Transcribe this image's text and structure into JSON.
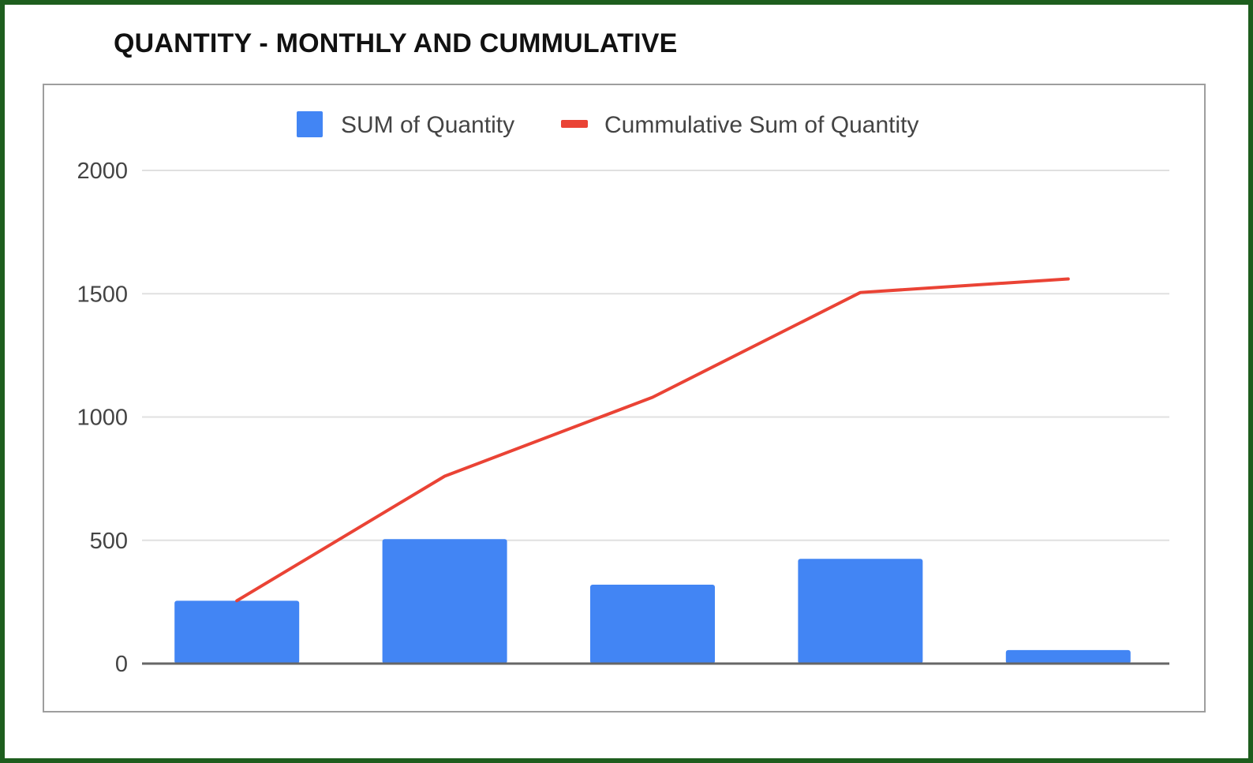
{
  "chart_title": "QUANTITY - MONTHLY AND CUMMULATIVE",
  "colors": {
    "bar": "#4285f4",
    "line": "#ea4335",
    "frame": "#1e5e1e",
    "grid": "#e0e0e0",
    "baseline": "#666666"
  },
  "chart_data": {
    "type": "bar",
    "title": "QUANTITY - MONTHLY AND CUMMULATIVE",
    "categories": [
      "",
      "",
      "",
      "",
      ""
    ],
    "series": [
      {
        "name": "SUM of Quantity",
        "type": "bar",
        "color": "#4285f4",
        "values": [
          255,
          505,
          320,
          425,
          55
        ]
      },
      {
        "name": "Cummulative Sum of Quantity",
        "type": "line",
        "color": "#ea4335",
        "values": [
          255,
          760,
          1080,
          1505,
          1560
        ]
      }
    ],
    "ylim": [
      0,
      2000
    ],
    "yticks": [
      "0",
      "500",
      "1000",
      "1500",
      "2000"
    ],
    "xlabel": "",
    "ylabel": "",
    "grid": true,
    "legend": "top"
  }
}
